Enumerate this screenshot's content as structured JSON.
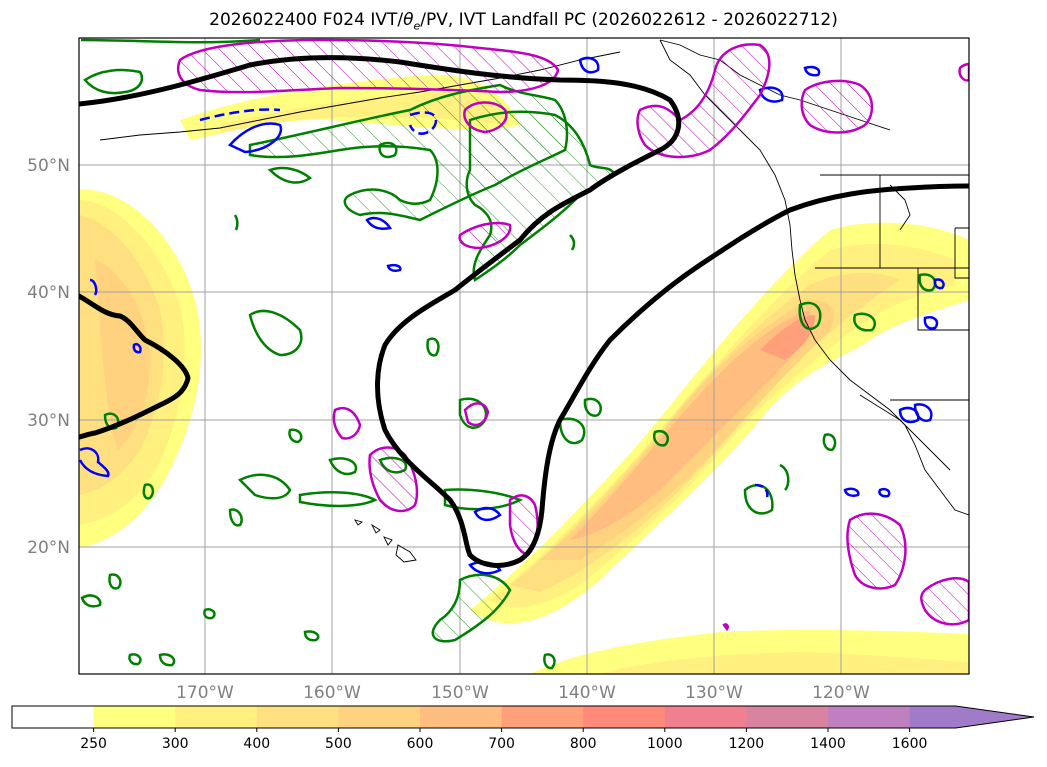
{
  "title_prefix": "2026022400 F024 IVT/",
  "title_theta": "θ",
  "title_theta_sub": "e",
  "title_suffix": "/PV, IVT Landfall PC (2026022612 - 2026022712)",
  "map": {
    "lat_labels": [
      "50°N",
      "40°N",
      "30°N",
      "20°N"
    ],
    "lon_labels": [
      "170°W",
      "160°W",
      "150°W",
      "140°W",
      "130°W",
      "120°W"
    ],
    "lat_values": [
      50,
      40,
      30,
      20
    ],
    "lon_values": [
      -170,
      -160,
      -150,
      -140,
      -130,
      -120
    ],
    "lon_range": [
      -180,
      -110
    ],
    "lat_range": [
      10,
      60
    ]
  },
  "colorbar": {
    "levels": [
      "250",
      "300",
      "400",
      "500",
      "600",
      "700",
      "800",
      "1000",
      "1200",
      "1400",
      "1600"
    ],
    "colors": [
      "#ffffff",
      "#ffff80",
      "#fff080",
      "#ffe080",
      "#ffd280",
      "#ffbe80",
      "#ffa07a",
      "#ff8a7a",
      "#f08090",
      "#d883a0",
      "#c080c0",
      "#a07cc8"
    ],
    "extend": "max"
  },
  "legend_colors": {
    "ivt_landfall_pc": "#000000",
    "theta_e": "#008000",
    "pv_negative": "#0000ff",
    "pv_positive": "#c000c0"
  }
}
